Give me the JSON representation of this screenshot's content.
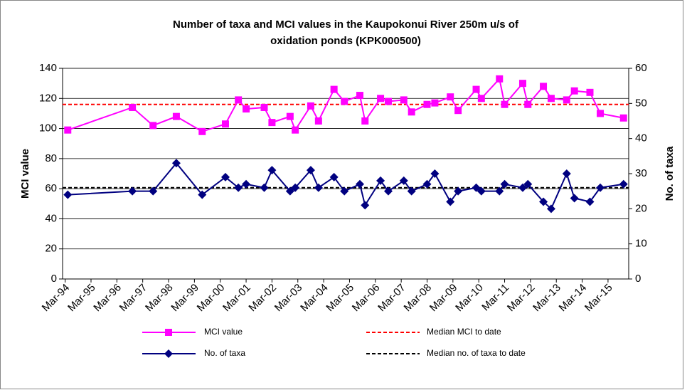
{
  "chart_data": {
    "type": "line",
    "title": [
      "Number of taxa and MCI values in the Kaupokonui River 250m u/s of",
      "oxidation ponds  (KPK000500)"
    ],
    "y_label": "MCI value",
    "y2_label": "No. of taxa",
    "x": [
      1994.1,
      1996.6,
      1997.4,
      1998.3,
      1999.3,
      2000.2,
      2000.7,
      2001.0,
      2001.7,
      2002.0,
      2002.7,
      2002.9,
      2003.5,
      2003.8,
      2004.4,
      2004.8,
      2005.4,
      2005.6,
      2006.2,
      2006.5,
      2007.1,
      2007.4,
      2008.0,
      2008.3,
      2008.9,
      2009.2,
      2009.9,
      2010.1,
      2010.8,
      2011.0,
      2011.7,
      2011.9,
      2012.5,
      2012.8,
      2013.4,
      2013.7,
      2014.3,
      2014.7,
      2015.6
    ],
    "xlim": [
      1993.9,
      2015.8
    ],
    "xticks": [
      {
        "value": 1994,
        "label": "Mar-94"
      },
      {
        "value": 1995,
        "label": "Mar-95"
      },
      {
        "value": 1996,
        "label": "Mar-96"
      },
      {
        "value": 1997,
        "label": "Mar-97"
      },
      {
        "value": 1998,
        "label": "Mar-98"
      },
      {
        "value": 1999,
        "label": "Mar-99"
      },
      {
        "value": 2000,
        "label": "Mar-00"
      },
      {
        "value": 2001,
        "label": "Mar-01"
      },
      {
        "value": 2002,
        "label": "Mar-02"
      },
      {
        "value": 2003,
        "label": "Mar-03"
      },
      {
        "value": 2004,
        "label": "Mar-04"
      },
      {
        "value": 2005,
        "label": "Mar-05"
      },
      {
        "value": 2006,
        "label": "Mar-06"
      },
      {
        "value": 2007,
        "label": "Mar-07"
      },
      {
        "value": 2008,
        "label": "Mar-08"
      },
      {
        "value": 2009,
        "label": "Mar-09"
      },
      {
        "value": 2010,
        "label": "Mar-10"
      },
      {
        "value": 2011,
        "label": "Mar-11"
      },
      {
        "value": 2012,
        "label": "Mar-12"
      },
      {
        "value": 2013,
        "label": "Mar-13"
      },
      {
        "value": 2014,
        "label": "Mar-14"
      },
      {
        "value": 2015,
        "label": "Mar-15"
      }
    ],
    "ylim": [
      0,
      140
    ],
    "yticks": [
      0,
      20,
      40,
      60,
      80,
      100,
      120,
      140
    ],
    "y2lim": [
      0,
      60
    ],
    "y2ticks": [
      0,
      10,
      20,
      30,
      40,
      50,
      60
    ],
    "grid": true,
    "series": [
      {
        "name": "MCI value",
        "color": "#ff00ff",
        "marker": "square",
        "values": [
          99,
          114,
          102,
          108,
          98,
          103,
          119,
          113,
          114,
          104,
          108,
          99,
          115,
          105,
          126,
          118,
          122,
          105,
          120,
          118,
          119,
          111,
          116,
          117,
          121,
          112,
          126,
          120,
          133,
          116,
          130,
          116,
          128,
          120,
          119,
          125,
          124,
          110,
          107
        ]
      },
      {
        "name": "No. of taxa",
        "color": "#000080",
        "marker": "diamond",
        "axis": "y2",
        "values": [
          24,
          25,
          25,
          33,
          24,
          29,
          26,
          27,
          26,
          31,
          25,
          26,
          31,
          26,
          29,
          25,
          27,
          21,
          28,
          25,
          28,
          25,
          27,
          30,
          22,
          25,
          26,
          25,
          25,
          27,
          26,
          27,
          22,
          20,
          30,
          23,
          22,
          26,
          27
        ]
      }
    ],
    "reference_lines": [
      {
        "name": "Median MCI to date",
        "value": 116,
        "color": "#ff0000"
      },
      {
        "name": "Median no. of taxa to date",
        "value": 26,
        "color": "#000000",
        "axis": "y2"
      }
    ]
  }
}
